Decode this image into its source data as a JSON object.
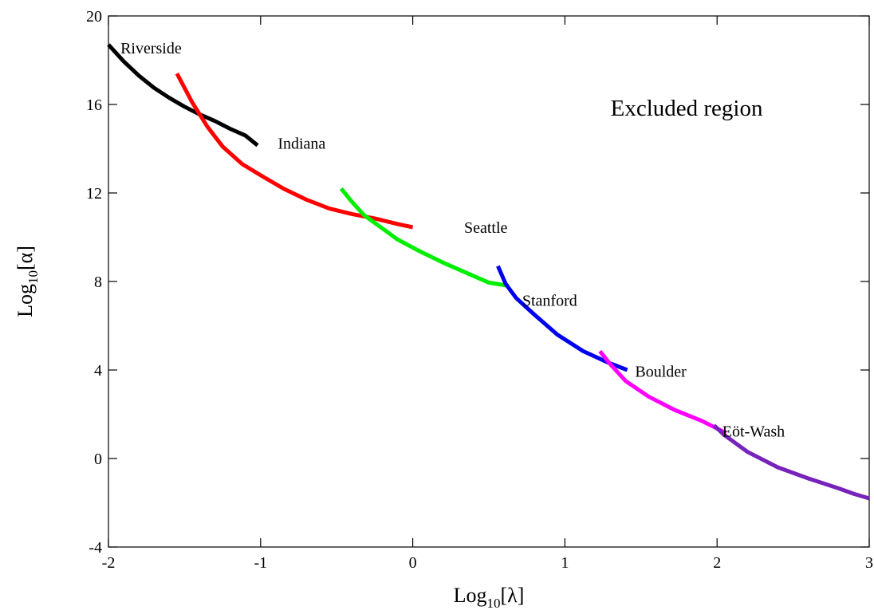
{
  "chart_data": {
    "type": "line",
    "title": "",
    "xlabel": "Log10[λ]",
    "ylabel": "Log10[α]",
    "xlabel_parts": {
      "base": "Log",
      "sub": "10",
      "arg": "[λ]"
    },
    "ylabel_parts": {
      "base": "Log",
      "sub": "10",
      "arg": "[α]"
    },
    "xlim": [
      -2,
      3
    ],
    "ylim": [
      -4,
      20
    ],
    "x_ticks": [
      -2,
      -1,
      0,
      1,
      2,
      3
    ],
    "x_tick_labels": [
      "-2",
      "-1",
      "0",
      "1",
      "2",
      "3"
    ],
    "y_ticks": [
      -4,
      0,
      4,
      8,
      12,
      16,
      20
    ],
    "y_tick_labels": [
      "-4",
      "0",
      "4",
      "8",
      "12",
      "16",
      "20"
    ],
    "grid": false,
    "legend": "none",
    "series": [
      {
        "name": "Riverside",
        "color": "#000000",
        "x": [
          -2.0,
          -1.9,
          -1.8,
          -1.7,
          -1.6,
          -1.5,
          -1.4,
          -1.3,
          -1.2,
          -1.1,
          -1.02
        ],
        "y": [
          18.7,
          17.95,
          17.3,
          16.75,
          16.3,
          15.9,
          15.55,
          15.25,
          14.9,
          14.6,
          14.15
        ]
      },
      {
        "name": "Indiana",
        "color": "#ff0000",
        "x": [
          -1.55,
          -1.45,
          -1.35,
          -1.25,
          -1.12,
          -1.0,
          -0.85,
          -0.7,
          -0.55,
          -0.4,
          -0.25,
          -0.1,
          0.0
        ],
        "y": [
          17.4,
          16.1,
          15.0,
          14.1,
          13.3,
          12.8,
          12.2,
          11.7,
          11.3,
          11.05,
          10.85,
          10.6,
          10.45
        ]
      },
      {
        "name": "Seattle",
        "color": "#00ee00",
        "x": [
          -0.47,
          -0.4,
          -0.32,
          -0.2,
          -0.1,
          0.05,
          0.2,
          0.35,
          0.5,
          0.63
        ],
        "y": [
          12.2,
          11.6,
          11.0,
          10.4,
          9.9,
          9.35,
          8.85,
          8.4,
          7.95,
          7.8
        ]
      },
      {
        "name": "Stanford",
        "color": "#0000ee",
        "x": [
          0.56,
          0.61,
          0.68,
          0.8,
          0.95,
          1.12,
          1.28,
          1.41
        ],
        "y": [
          8.7,
          7.9,
          7.25,
          6.5,
          5.6,
          4.85,
          4.35,
          4.0
        ]
      },
      {
        "name": "Boulder",
        "color": "#ff00ff",
        "x": [
          1.23,
          1.3,
          1.4,
          1.55,
          1.72,
          1.9,
          2.06
        ],
        "y": [
          4.85,
          4.25,
          3.5,
          2.8,
          2.2,
          1.7,
          1.15
        ]
      },
      {
        "name": "Eöt-Wash",
        "color": "#7722bb",
        "x": [
          1.98,
          2.05,
          2.2,
          2.4,
          2.6,
          2.8,
          2.9,
          3.0
        ],
        "y": [
          1.5,
          1.05,
          0.3,
          -0.4,
          -0.9,
          -1.35,
          -1.6,
          -1.8
        ]
      }
    ],
    "annotations": [
      {
        "text": "Riverside",
        "x": -1.72,
        "y": 18.3
      },
      {
        "text": "Indiana",
        "x": -0.73,
        "y": 14.0
      },
      {
        "text": "Seattle",
        "x": 0.48,
        "y": 10.2
      },
      {
        "text": "Stanford",
        "x": 0.9,
        "y": 6.9
      },
      {
        "text": "Boulder",
        "x": 1.63,
        "y": 3.7
      },
      {
        "text": "Eöt-Wash",
        "x": 2.24,
        "y": 1.0
      },
      {
        "text": "Excluded region",
        "x": 1.8,
        "y": 15.5,
        "size": "large"
      }
    ]
  }
}
